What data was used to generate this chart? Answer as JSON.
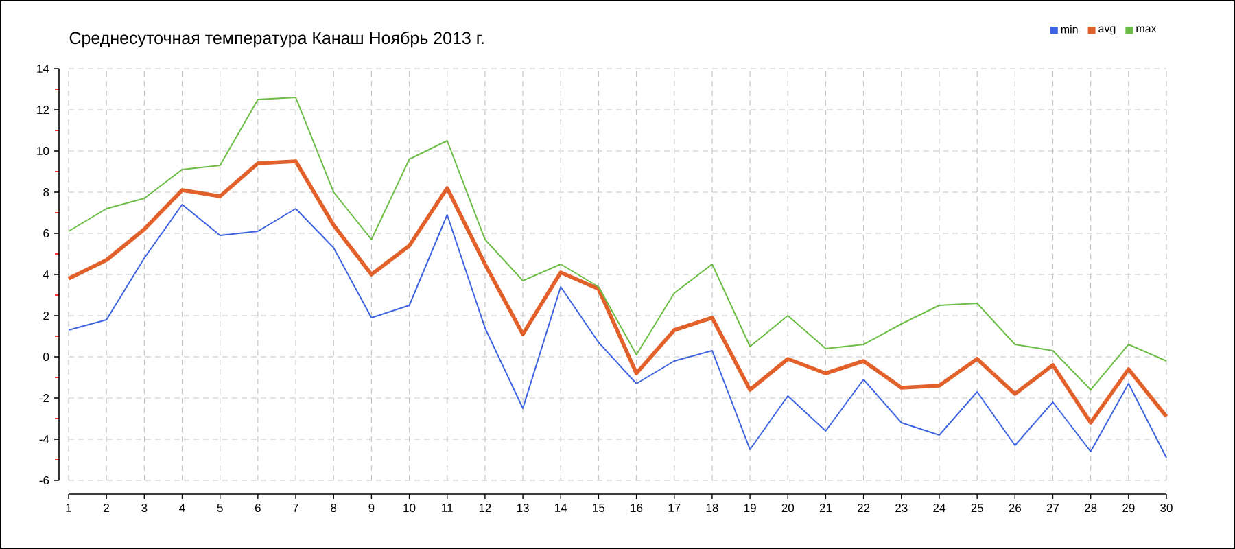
{
  "chart_data": {
    "type": "line",
    "title": "Среднесуточная температура Канаш  Ноябрь 2013 г.",
    "x": [
      1,
      2,
      3,
      4,
      5,
      6,
      7,
      8,
      9,
      10,
      11,
      12,
      13,
      14,
      15,
      16,
      17,
      18,
      19,
      20,
      21,
      22,
      23,
      24,
      25,
      26,
      27,
      28,
      29,
      30
    ],
    "series": [
      {
        "name": "min",
        "color": "#3d63e0",
        "values": [
          1.3,
          1.8,
          4.8,
          7.4,
          5.9,
          6.1,
          7.2,
          5.3,
          1.9,
          2.5,
          6.9,
          1.4,
          -2.5,
          3.4,
          0.7,
          -1.3,
          -0.2,
          0.3,
          -4.5,
          -1.9,
          -3.6,
          -1.1,
          -3.2,
          -3.8,
          -1.7,
          -4.3,
          -2.2,
          -4.6,
          -1.3,
          -4.9
        ]
      },
      {
        "name": "avg",
        "color": "#e2602a",
        "values": [
          3.8,
          4.7,
          6.2,
          8.1,
          7.8,
          9.4,
          9.5,
          6.4,
          4.0,
          5.4,
          8.2,
          4.5,
          1.1,
          4.1,
          3.3,
          -0.8,
          1.3,
          1.9,
          -1.6,
          -0.1,
          -0.8,
          -0.2,
          -1.5,
          -1.4,
          -0.1,
          -1.8,
          -0.4,
          -3.2,
          -0.6,
          -2.9
        ]
      },
      {
        "name": "max",
        "color": "#6cbd45",
        "values": [
          6.1,
          7.2,
          7.7,
          9.1,
          9.3,
          12.5,
          12.6,
          8.0,
          5.7,
          9.6,
          10.5,
          5.7,
          3.7,
          4.5,
          3.4,
          0.1,
          3.1,
          4.5,
          0.5,
          2.0,
          0.4,
          0.6,
          1.6,
          2.5,
          2.6,
          0.6,
          0.3,
          -1.6,
          0.6,
          -0.2
        ]
      }
    ],
    "xlim": [
      1,
      30
    ],
    "ylim": [
      -6,
      14
    ],
    "xticks": [
      1,
      2,
      3,
      4,
      5,
      6,
      7,
      8,
      9,
      10,
      11,
      12,
      13,
      14,
      15,
      16,
      17,
      18,
      19,
      20,
      21,
      22,
      23,
      24,
      25,
      26,
      27,
      28,
      29,
      30
    ],
    "yticks": [
      -6,
      {
        "value": -5,
        "label": null
      },
      -4,
      {
        "value": -3,
        "label": null
      },
      -2,
      {
        "value": -1,
        "label": null
      },
      0,
      {
        "value": 1,
        "label": null
      },
      2,
      {
        "value": 3,
        "label": null
      },
      4,
      {
        "value": 5,
        "label": null
      },
      6,
      {
        "value": 7,
        "label": null
      },
      8,
      {
        "value": 9,
        "label": null
      },
      10,
      {
        "value": 11,
        "label": null
      },
      12,
      {
        "value": 13,
        "label": null
      },
      14
    ],
    "grid": true,
    "legend": "top right"
  }
}
